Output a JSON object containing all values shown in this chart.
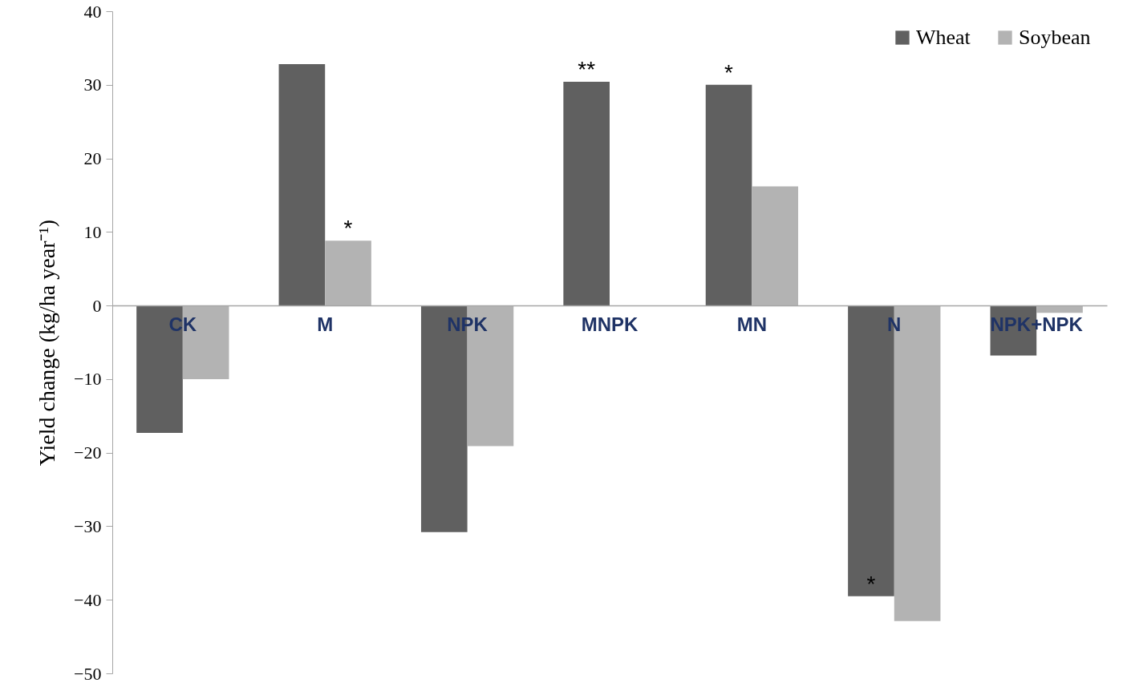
{
  "chart_data": {
    "type": "bar",
    "ylabel": "Yield change (kg/ha year⁻¹)",
    "categories": [
      "CK",
      "M",
      "NPK",
      "MNPK",
      "MN",
      "N",
      "NPK+NPK"
    ],
    "series": [
      {
        "name": "Wheat",
        "color": "#606060",
        "values": [
          -17.3,
          32.8,
          -30.8,
          30.4,
          30.0,
          -39.5,
          -6.8
        ]
      },
      {
        "name": "Soybean",
        "color": "#b3b3b3",
        "values": [
          -10.0,
          8.8,
          -19.1,
          null,
          16.2,
          -42.9,
          -1.0
        ]
      }
    ],
    "ylim": [
      -50,
      40
    ],
    "yticks": [
      -50,
      -40,
      -30,
      -20,
      -10,
      0,
      10,
      20,
      30,
      40
    ],
    "grid": false,
    "legend": "top right",
    "annotations": [
      {
        "text": "*",
        "x": "M",
        "y": 8.8
      },
      {
        "text": "**",
        "x": "MNPK",
        "y": 30.4
      },
      {
        "text": "*",
        "x": "MN",
        "y": 30.0
      },
      {
        "text": "*",
        "x": "N",
        "y": -39.5
      }
    ]
  }
}
